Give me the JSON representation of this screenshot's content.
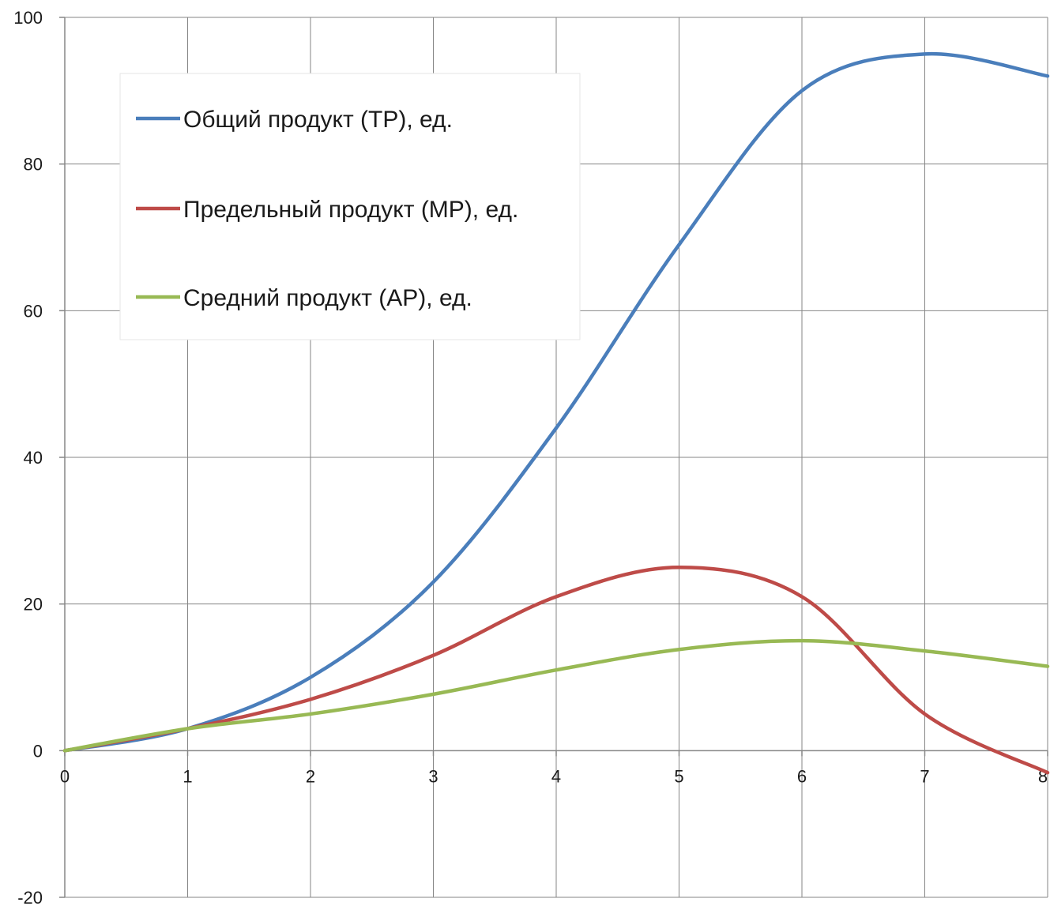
{
  "chart_data": {
    "type": "line",
    "title": "",
    "xlabel": "",
    "ylabel": "",
    "xlim": [
      0,
      8
    ],
    "ylim": [
      -20,
      100
    ],
    "x_ticks": [
      0,
      1,
      2,
      3,
      4,
      5,
      6,
      7,
      8
    ],
    "y_ticks": [
      -20,
      0,
      20,
      40,
      60,
      80,
      100
    ],
    "grid": true,
    "legend_position": "top-left",
    "x": [
      0,
      1,
      2,
      3,
      4,
      5,
      6,
      7,
      8
    ],
    "series": [
      {
        "name": "Общий продукт (TP), ед.",
        "color": "#4a7ebb",
        "values": [
          0,
          3,
          10,
          23,
          44,
          69,
          90,
          95,
          92
        ]
      },
      {
        "name": "Предельный продукт (MP), ед.",
        "color": "#be4b48",
        "values": [
          0,
          3,
          7,
          13,
          21,
          25,
          21,
          5,
          -3
        ]
      },
      {
        "name": "Средний продукт (AP), ед.",
        "color": "#98b954",
        "values": [
          0,
          3,
          5,
          7.7,
          11,
          13.8,
          15,
          13.6,
          11.5
        ]
      }
    ]
  }
}
